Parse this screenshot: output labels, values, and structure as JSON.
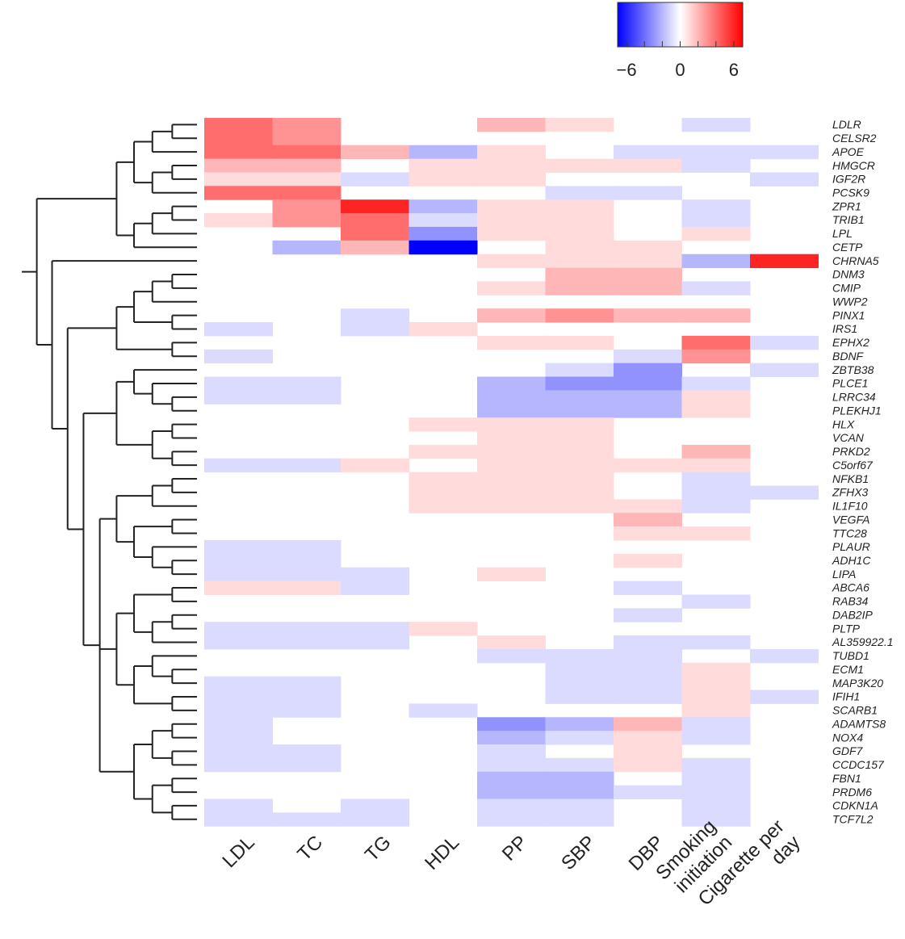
{
  "chart_data": {
    "type": "heatmap",
    "title": "",
    "columns": [
      "LDL",
      "TC",
      "TG",
      "HDL",
      "PP",
      "SBP",
      "DBP",
      "Smoking initiation",
      "Cigarette per day"
    ],
    "column_label_lines": [
      [
        "LDL"
      ],
      [
        "TC"
      ],
      [
        "TG"
      ],
      [
        "HDL"
      ],
      [
        "PP"
      ],
      [
        "SBP"
      ],
      [
        "DBP"
      ],
      [
        "Smoking",
        "initiation"
      ],
      [
        "Cigarette per",
        "day"
      ]
    ],
    "rows": [
      "LDLR",
      "CELSR2",
      "APOE",
      "HMGCR",
      "IGF2R",
      "PCSK9",
      "ZPR1",
      "TRIB1",
      "LPL",
      "CETP",
      "CHRNA5",
      "DNM3",
      "CMIP",
      "WWP2",
      "PINX1",
      "IRS1",
      "EPHX2",
      "BDNF",
      "ZBTB38",
      "PLCE1",
      "LRRC34",
      "PLEKHJ1",
      "HLX",
      "VCAN",
      "PRKD2",
      "C5orf67",
      "NFKB1",
      "ZFHX3",
      "IL1F10",
      "VEGFA",
      "TTC28",
      "PLAUR",
      "ADH1C",
      "LIPA",
      "ABCA6",
      "RAB34",
      "DAB2IP",
      "PLTP",
      "AL359922.1",
      "TUBD1",
      "ECM1",
      "MAP3K20",
      "IFIH1",
      "SCARB1",
      "ADAMTS8",
      "NOX4",
      "GDF7",
      "CCDC157",
      "FBN1",
      "PRDM6",
      "CDKN1A",
      "TCF7L2"
    ],
    "values": [
      [
        4,
        3,
        0,
        0,
        2,
        1,
        0,
        -1,
        0
      ],
      [
        4,
        3,
        0,
        0,
        0,
        0,
        0,
        0,
        0
      ],
      [
        4,
        4,
        2,
        -2,
        1,
        0,
        -1,
        -1,
        -1
      ],
      [
        2,
        2,
        0,
        1,
        1,
        1,
        1,
        -1,
        0
      ],
      [
        1,
        1,
        -1,
        1,
        1,
        0,
        0,
        0,
        -1
      ],
      [
        4,
        4,
        0,
        0,
        0,
        -1,
        -1,
        0,
        0
      ],
      [
        0,
        3,
        6,
        -2,
        1,
        1,
        0,
        -1,
        0
      ],
      [
        1,
        3,
        4,
        -1,
        1,
        1,
        0,
        -1,
        0
      ],
      [
        0,
        0,
        4,
        -3,
        1,
        1,
        0,
        1,
        0
      ],
      [
        0,
        -2,
        2,
        -7,
        0,
        1,
        1,
        0,
        0
      ],
      [
        0,
        0,
        0,
        0,
        1,
        1,
        1,
        -2,
        6
      ],
      [
        0,
        0,
        0,
        0,
        0,
        2,
        2,
        0,
        0
      ],
      [
        0,
        0,
        0,
        0,
        1,
        2,
        2,
        -1,
        0
      ],
      [
        0,
        0,
        0,
        0,
        0,
        0,
        0,
        0,
        0
      ],
      [
        0,
        0,
        -1,
        0,
        2,
        3,
        2,
        2,
        0
      ],
      [
        -1,
        0,
        -1,
        1,
        0,
        0,
        0,
        0,
        0
      ],
      [
        0,
        0,
        0,
        0,
        1,
        1,
        0,
        4,
        -1
      ],
      [
        -1,
        0,
        0,
        0,
        0,
        0,
        -1,
        3,
        0
      ],
      [
        0,
        0,
        0,
        0,
        0,
        -1,
        -3,
        0,
        -1
      ],
      [
        -1,
        -1,
        0,
        0,
        -2,
        -3,
        -3,
        -1,
        0
      ],
      [
        -1,
        -1,
        0,
        0,
        -2,
        -2,
        -2,
        1,
        0
      ],
      [
        0,
        0,
        0,
        0,
        -2,
        -2,
        -2,
        1,
        0
      ],
      [
        0,
        0,
        0,
        1,
        1,
        1,
        0,
        0,
        0
      ],
      [
        0,
        0,
        0,
        0,
        1,
        1,
        0,
        0,
        0
      ],
      [
        0,
        0,
        0,
        1,
        1,
        1,
        0,
        2,
        0
      ],
      [
        -1,
        -1,
        1,
        0,
        1,
        1,
        1,
        1,
        0
      ],
      [
        0,
        0,
        0,
        1,
        1,
        1,
        0,
        -1,
        0
      ],
      [
        0,
        0,
        0,
        1,
        1,
        1,
        0,
        -1,
        -1
      ],
      [
        0,
        0,
        0,
        1,
        1,
        1,
        1,
        -1,
        0
      ],
      [
        0,
        0,
        0,
        0,
        0,
        0,
        2,
        0,
        0
      ],
      [
        0,
        0,
        0,
        0,
        0,
        0,
        1,
        1,
        0
      ],
      [
        -1,
        -1,
        0,
        0,
        0,
        0,
        0,
        0,
        0
      ],
      [
        -1,
        -1,
        0,
        0,
        0,
        0,
        1,
        0,
        0
      ],
      [
        -1,
        -1,
        -1,
        0,
        1,
        0,
        0,
        0,
        0
      ],
      [
        1,
        1,
        -1,
        0,
        0,
        0,
        -1,
        0,
        0
      ],
      [
        0,
        0,
        0,
        0,
        0,
        0,
        0,
        -1,
        0
      ],
      [
        0,
        0,
        0,
        0,
        0,
        0,
        -1,
        0,
        0
      ],
      [
        -1,
        -1,
        -1,
        1,
        0,
        0,
        0,
        0,
        0
      ],
      [
        -1,
        -1,
        -1,
        0,
        1,
        0,
        -1,
        -1,
        0
      ],
      [
        0,
        0,
        0,
        0,
        -1,
        -1,
        -1,
        0,
        -1
      ],
      [
        0,
        0,
        0,
        0,
        0,
        -1,
        -1,
        1,
        0
      ],
      [
        -1,
        -1,
        0,
        0,
        0,
        -1,
        -1,
        1,
        0
      ],
      [
        -1,
        -1,
        0,
        0,
        0,
        -1,
        -1,
        1,
        -1
      ],
      [
        -1,
        -1,
        0,
        -1,
        0,
        0,
        0,
        1,
        0
      ],
      [
        -1,
        0,
        0,
        0,
        -3,
        -2,
        2,
        -1,
        0
      ],
      [
        -1,
        0,
        0,
        0,
        -2,
        -1,
        1,
        -1,
        0
      ],
      [
        -1,
        -1,
        0,
        0,
        -1,
        0,
        1,
        0,
        0
      ],
      [
        -1,
        -1,
        0,
        0,
        -1,
        -1,
        1,
        -1,
        0
      ],
      [
        0,
        0,
        0,
        0,
        -2,
        -2,
        0,
        -1,
        0
      ],
      [
        0,
        0,
        0,
        0,
        -2,
        -2,
        -1,
        -1,
        0
      ],
      [
        -1,
        0,
        -1,
        0,
        -1,
        -1,
        0,
        -1,
        0
      ],
      [
        -1,
        -1,
        -1,
        0,
        -1,
        -1,
        0,
        -1,
        0
      ]
    ],
    "color_scale": {
      "min": -7,
      "max": 7,
      "low_color": "#0000ff",
      "mid_color": "#ffffff",
      "high_color": "#ff0000",
      "tick_labels": [
        "−6",
        "0",
        "6"
      ],
      "tick_values": [
        -6,
        0,
        6
      ]
    },
    "dendrogram": "rows"
  }
}
